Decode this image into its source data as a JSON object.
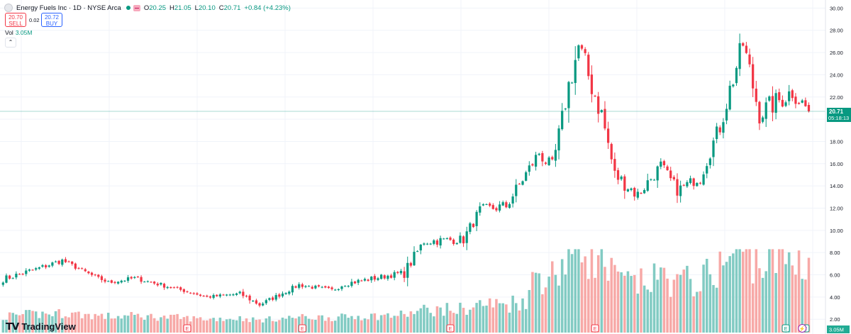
{
  "header": {
    "title": "Energy Fuels Inc · 1D · NYSE Arca",
    "open_label": "O",
    "open": "20.25",
    "high_label": "H",
    "high": "21.05",
    "low_label": "L",
    "low": "20.10",
    "close_label": "C",
    "close": "20.71",
    "change": "+0.84 (+4.23%)"
  },
  "trade": {
    "sell_price": "20.70",
    "sell_label": "SELL",
    "spread": "0.02",
    "buy_price": "20.72",
    "buy_label": "BUY"
  },
  "volume": {
    "label": "Vol",
    "value": "3.05M"
  },
  "collapse_glyph": "⌃",
  "brand": {
    "mark": "𝗧𝗩",
    "name": "TradingView"
  },
  "price_axis": {
    "last_price": "20.71",
    "countdown": "05:18:13",
    "last_volume": "3.05M"
  },
  "colors": {
    "up": "#089981",
    "down": "#f23645",
    "up_volume": "#82cbc3",
    "down_volume": "#f7a9a7",
    "price_line": "#089981"
  },
  "chart_data": {
    "type": "candlestick",
    "y_ticks": [
      "30.00",
      "28.00",
      "26.00",
      "24.00",
      "22.00",
      "20.00",
      "18.00",
      "16.00",
      "14.00",
      "12.00",
      "10.00",
      "8.00",
      "6.00",
      "4.00",
      "2.00"
    ],
    "ylim": [
      0.8,
      30.6
    ],
    "grid": true,
    "last_price": 20.71,
    "volume_max_millions": 20,
    "event_markers": [
      {
        "label": "E",
        "type": "earnings",
        "index": 56
      },
      {
        "label": "E",
        "type": "earnings",
        "index": 91
      },
      {
        "label": "E",
        "type": "earnings",
        "index": 136
      },
      {
        "label": "E",
        "type": "earnings",
        "index": 180
      },
      {
        "label": "E",
        "type": "earnings",
        "index": 238
      },
      {
        "label": "E",
        "type": "earnings",
        "index": 244
      },
      {
        "label": "⚡",
        "type": "split",
        "index": 243
      }
    ],
    "segments": [
      {
        "from": 0,
        "to": 10,
        "start": 5.6,
        "end": 6.5,
        "swing": 0.3
      },
      {
        "from": 10,
        "to": 18,
        "start": 6.5,
        "end": 7.3,
        "swing": 0.25
      },
      {
        "from": 18,
        "to": 26,
        "start": 7.3,
        "end": 6.1,
        "swing": 0.2
      },
      {
        "from": 26,
        "to": 32,
        "start": 6.1,
        "end": 5.3,
        "swing": 0.15
      },
      {
        "from": 32,
        "to": 40,
        "start": 5.3,
        "end": 5.7,
        "swing": 0.2
      },
      {
        "from": 40,
        "to": 52,
        "start": 5.7,
        "end": 4.8,
        "swing": 0.2
      },
      {
        "from": 52,
        "to": 62,
        "start": 4.8,
        "end": 4.0,
        "swing": 0.15
      },
      {
        "from": 62,
        "to": 72,
        "start": 4.0,
        "end": 4.3,
        "swing": 0.15
      },
      {
        "from": 72,
        "to": 78,
        "start": 4.3,
        "end": 3.3,
        "swing": 0.2
      },
      {
        "from": 78,
        "to": 90,
        "start": 3.3,
        "end": 5.1,
        "swing": 0.2
      },
      {
        "from": 90,
        "to": 100,
        "start": 5.1,
        "end": 4.6,
        "swing": 0.2
      },
      {
        "from": 100,
        "to": 104,
        "start": 4.6,
        "end": 5.2,
        "swing": 0.2
      },
      {
        "from": 104,
        "to": 122,
        "start": 5.2,
        "end": 6.2,
        "swing": 0.25
      },
      {
        "from": 122,
        "to": 128,
        "start": 6.2,
        "end": 9.0,
        "swing": 0.5
      },
      {
        "from": 128,
        "to": 140,
        "start": 9.0,
        "end": 9.2,
        "swing": 0.4
      },
      {
        "from": 140,
        "to": 145,
        "start": 9.2,
        "end": 11.8,
        "swing": 0.5
      },
      {
        "from": 145,
        "to": 153,
        "start": 11.8,
        "end": 12.2,
        "swing": 0.5
      },
      {
        "from": 153,
        "to": 163,
        "start": 12.2,
        "end": 17.0,
        "swing": 0.6
      },
      {
        "from": 163,
        "to": 167,
        "start": 17.0,
        "end": 15.5,
        "swing": 0.7
      },
      {
        "from": 167,
        "to": 172,
        "start": 15.5,
        "end": 23.0,
        "swing": 0.9
      },
      {
        "from": 172,
        "to": 175,
        "start": 23.0,
        "end": 26.5,
        "swing": 1.2
      },
      {
        "from": 175,
        "to": 182,
        "start": 26.5,
        "end": 20.5,
        "swing": 1.3
      },
      {
        "from": 182,
        "to": 186,
        "start": 20.5,
        "end": 15.0,
        "swing": 1.0
      },
      {
        "from": 186,
        "to": 193,
        "start": 15.0,
        "end": 13.2,
        "swing": 0.7
      },
      {
        "from": 193,
        "to": 200,
        "start": 13.2,
        "end": 15.8,
        "swing": 0.6
      },
      {
        "from": 200,
        "to": 205,
        "start": 15.8,
        "end": 13.6,
        "swing": 0.6
      },
      {
        "from": 205,
        "to": 212,
        "start": 13.6,
        "end": 14.8,
        "swing": 0.5
      },
      {
        "from": 212,
        "to": 218,
        "start": 14.8,
        "end": 19.5,
        "swing": 0.7
      },
      {
        "from": 218,
        "to": 225,
        "start": 19.5,
        "end": 26.8,
        "swing": 1.1
      },
      {
        "from": 225,
        "to": 230,
        "start": 26.8,
        "end": 20.5,
        "swing": 1.2
      },
      {
        "from": 230,
        "to": 240,
        "start": 20.5,
        "end": 22.5,
        "swing": 1.0
      },
      {
        "from": 240,
        "to": 245,
        "start": 22.5,
        "end": 20.71,
        "swing": 0.9
      }
    ]
  }
}
